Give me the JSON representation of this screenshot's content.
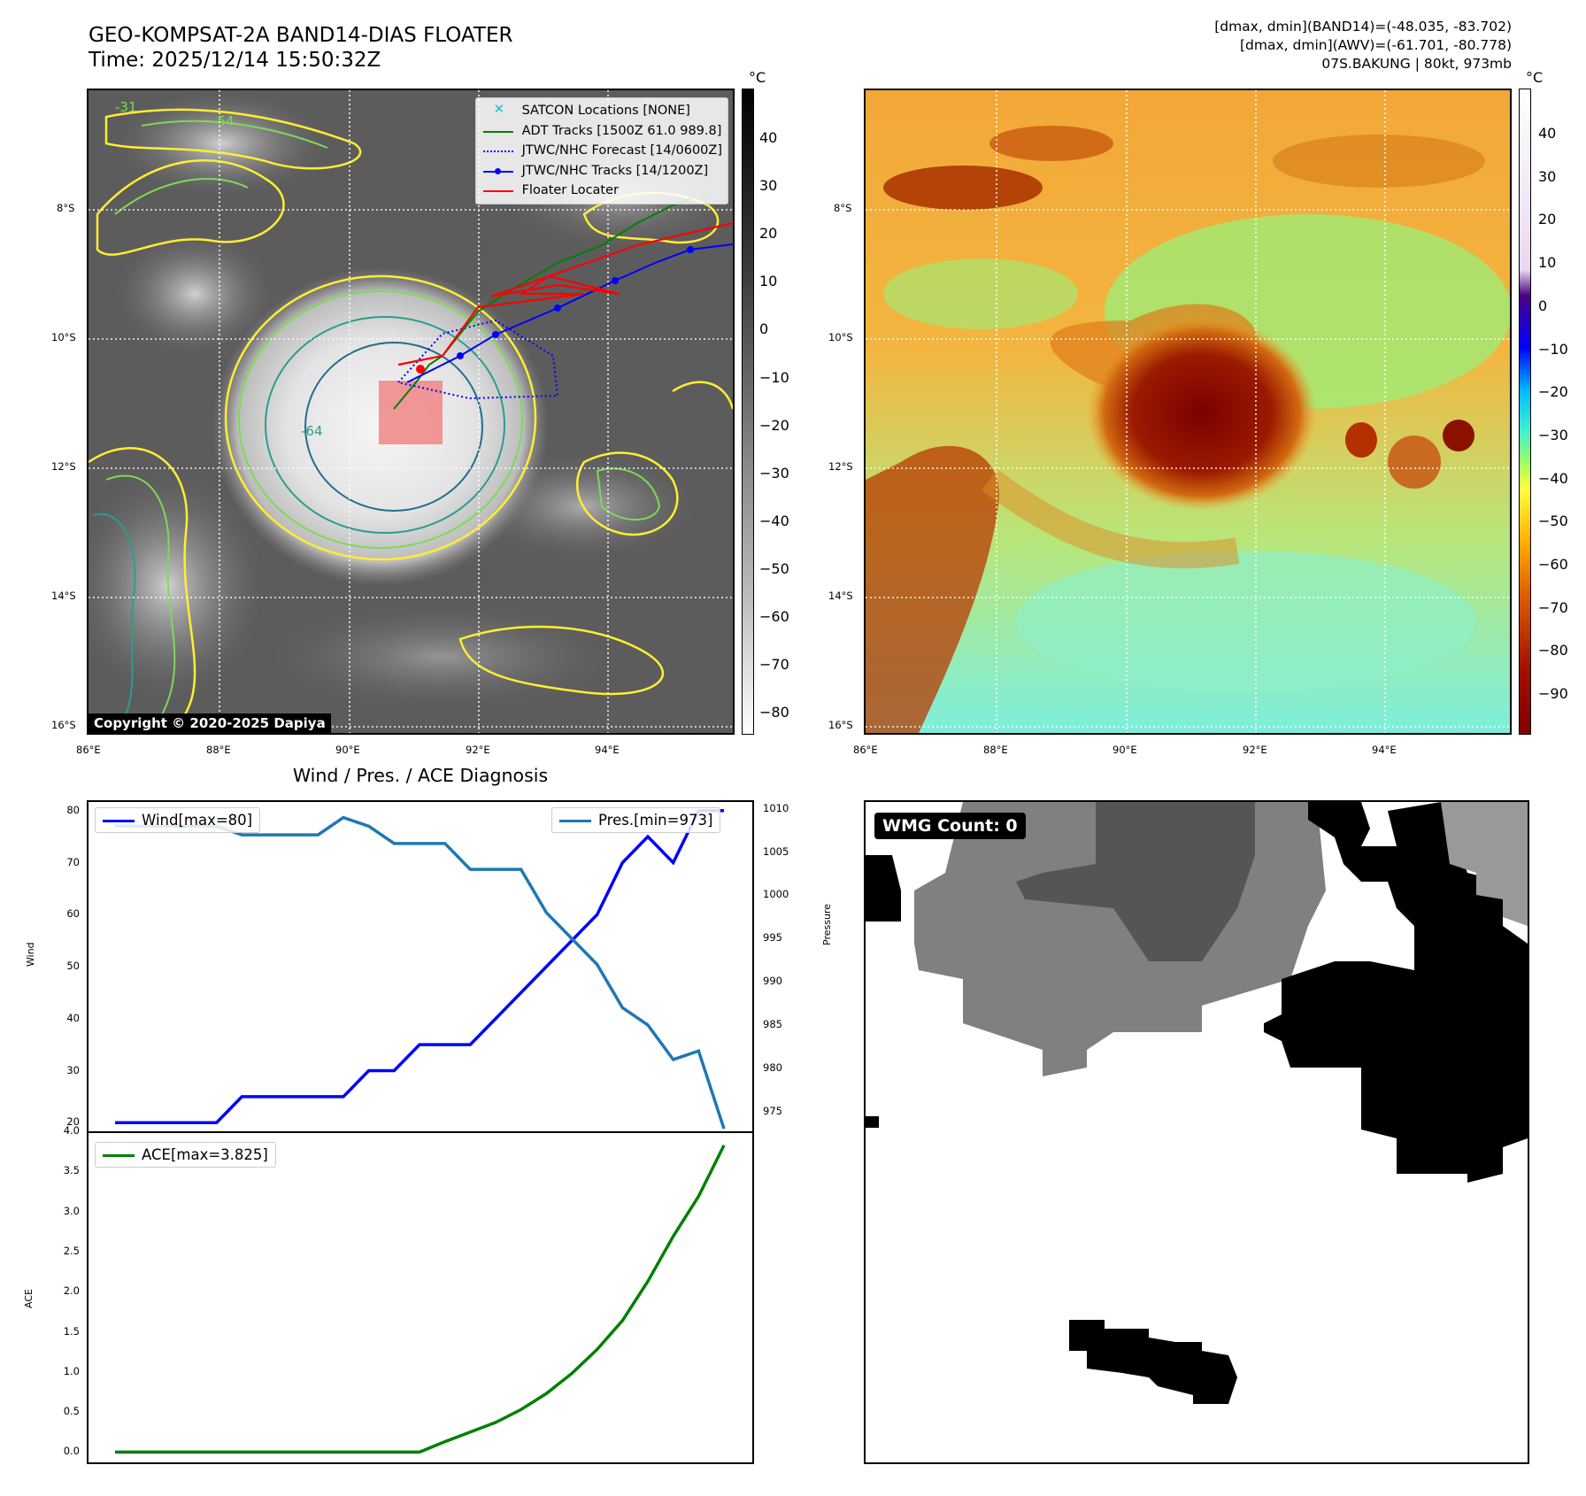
{
  "header": {
    "title_line1": "GEO-KOMPSAT-2A BAND14-DIAS FLOATER",
    "title_line2": "Time: 2025/12/14 15:50:32Z",
    "info_line1": "[dmax, dmin](BAND14)=(-48.035, -83.702)",
    "info_line2": "[dmax, dmin](AWV)=(-61.701, -80.778)",
    "info_line3": "07S.BAKUNG | 80kt, 973mb"
  },
  "map": {
    "lat_labels": [
      "8°S",
      "10°S",
      "12°S",
      "14°S",
      "16°S"
    ],
    "lon_labels": [
      "86°E",
      "88°E",
      "90°E",
      "92°E",
      "94°E"
    ],
    "copyright": "Copyright © 2020-2025 Dapiya",
    "contour_labels": [
      "-31",
      "-54",
      "-64"
    ],
    "colors": {
      "satcon": "#17becf",
      "adt": "#008000",
      "forecast": "#0000ff",
      "tracks": "#0000ff",
      "floater": "#ff0000",
      "box": "#f08080"
    }
  },
  "legend": {
    "satcon": "SATCON Locations [NONE]",
    "adt": "ADT Tracks [1500Z 61.0 989.8]",
    "forecast": "JTWC/NHC Forecast [14/0600Z]",
    "tracks": "JTWC/NHC Tracks [14/1200Z]",
    "floater": "Floater Locater"
  },
  "colorbar_gray": {
    "unit": "°C",
    "ticks": [
      "40",
      "30",
      "20",
      "10",
      "0",
      "−10",
      "−20",
      "−30",
      "−40",
      "−50",
      "−60",
      "−70",
      "−80"
    ]
  },
  "colorbar_awv": {
    "unit": "°C",
    "ticks": [
      "40",
      "30",
      "20",
      "10",
      "0",
      "−10",
      "−20",
      "−30",
      "−40",
      "−50",
      "−60",
      "−70",
      "−80",
      "−90"
    ]
  },
  "wmg": {
    "label": "WMG Count: 0"
  },
  "chart_data": [
    {
      "type": "line",
      "title": "Wind / Pres. / ACE Diagnosis",
      "ylabel": "Wind",
      "y2label": "Pressure",
      "ylim": [
        18,
        82
      ],
      "y2lim": [
        972.5,
        1011
      ],
      "y_ticks": [
        "80",
        "70",
        "60",
        "50",
        "40",
        "30",
        "20"
      ],
      "y2_ticks": [
        "1010",
        "1005",
        "1000",
        "995",
        "990",
        "985",
        "980",
        "975"
      ],
      "x": [
        0,
        1,
        2,
        3,
        4,
        5,
        6,
        7,
        8,
        9,
        10,
        11,
        12,
        13,
        14,
        15,
        16,
        17,
        18,
        19,
        20,
        21,
        22,
        23,
        24
      ],
      "series": [
        {
          "name": "Wind[max=80]",
          "color": "#0000ff",
          "values": [
            20,
            20,
            20,
            20,
            20,
            25,
            25,
            25,
            25,
            25,
            30,
            30,
            35,
            35,
            35,
            40,
            45,
            50,
            55,
            60,
            70,
            75,
            70,
            80,
            80
          ]
        },
        {
          "name": "Pres.[min=973]",
          "color": "#1f77b4",
          "axis": "right",
          "values": [
            1008,
            1008,
            1008,
            1008,
            1008,
            1007,
            1007,
            1007,
            1007,
            1009,
            1008,
            1006,
            1006,
            1006,
            1003,
            1003,
            1003,
            998,
            995,
            992,
            987,
            985,
            981,
            982,
            973
          ]
        }
      ]
    },
    {
      "type": "line",
      "ylabel": "ACE",
      "ylim": [
        -0.15,
        4.0
      ],
      "y_ticks": [
        "4.0",
        "3.5",
        "3.0",
        "2.5",
        "2.0",
        "1.5",
        "1.0",
        "0.5",
        "0.0"
      ],
      "x": [
        0,
        1,
        2,
        3,
        4,
        5,
        6,
        7,
        8,
        9,
        10,
        11,
        12,
        13,
        14,
        15,
        16,
        17,
        18,
        19,
        20,
        21,
        22,
        23,
        24
      ],
      "series": [
        {
          "name": "ACE[max=3.825]",
          "color": "#008000",
          "values": [
            0,
            0,
            0,
            0,
            0,
            0,
            0,
            0,
            0,
            0,
            0,
            0,
            0,
            0.13,
            0.25,
            0.37,
            0.53,
            0.73,
            0.98,
            1.28,
            1.64,
            2.13,
            2.69,
            3.19,
            3.825
          ]
        }
      ]
    }
  ]
}
